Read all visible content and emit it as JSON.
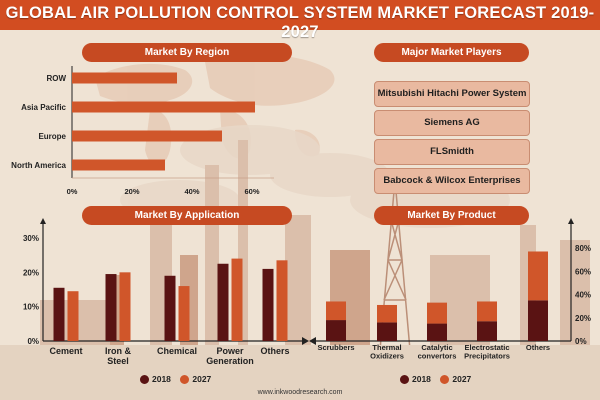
{
  "title": "GLOBAL AIR POLLUTION CONTROL SYSTEM MARKET FORECAST 2019-2027",
  "footer": "www.inkwoodresearch.com",
  "colors": {
    "header_bg": "#d24d21",
    "series_2018": "#5a1313",
    "series_2027": "#d0562a",
    "panel": "#c64a22"
  },
  "players": {
    "heading": "Major Market Players",
    "items": [
      "Mitsubishi Hitachi Power System",
      "Siemens AG",
      "FLSmidth",
      "Babcock & Wilcox Enterprises"
    ]
  },
  "chart_data": [
    {
      "type": "bar",
      "orientation": "horizontal",
      "title": "Market By Region",
      "categories": [
        "ROW",
        "Asia Pacific",
        "Europe",
        "North America"
      ],
      "values": [
        35,
        61,
        50,
        31
      ],
      "xlim": [
        0,
        60
      ],
      "xticks": [
        "0%",
        "20%",
        "40%",
        "60%"
      ]
    },
    {
      "type": "bar",
      "title": "Market By Application",
      "categories": [
        "Cement",
        "Iron &\nSteel",
        "Chemical",
        "Power\nGeneration",
        "Others"
      ],
      "series": [
        {
          "name": "2018",
          "values": [
            15.5,
            19.5,
            19,
            22.5,
            21
          ]
        },
        {
          "name": "2027",
          "values": [
            14.5,
            20,
            16,
            24,
            23.5
          ]
        }
      ],
      "ylim": [
        0,
        30
      ],
      "yticks": [
        "0%",
        "10%",
        "20%",
        "30%"
      ]
    },
    {
      "type": "bar",
      "stacked": true,
      "title": "Market By Product",
      "categories": [
        "Scrubbers",
        "Thermal\nOxidizers",
        "Catalytic\nconvertors",
        "Electrostatic\nPrecipitators",
        "Others"
      ],
      "series": [
        {
          "name": "2018",
          "values": [
            18,
            16,
            15,
            17,
            35
          ]
        },
        {
          "name": "2027",
          "values": [
            16,
            15,
            18,
            17,
            42
          ]
        }
      ],
      "ylim": [
        0,
        80
      ],
      "yticks": [
        "0%",
        "20%",
        "40%",
        "60%",
        "80%"
      ]
    }
  ]
}
